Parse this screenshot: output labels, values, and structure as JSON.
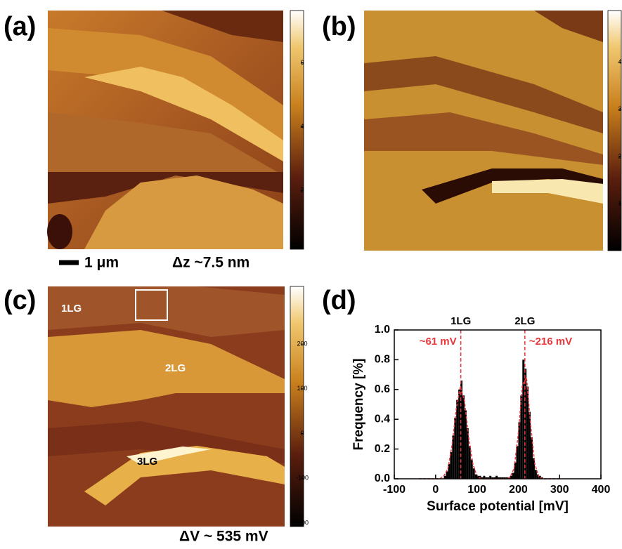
{
  "panels": [
    {
      "label": "(a)",
      "colorbar": {
        "lim": [
          0.15,
          7.65
        ],
        "ticks": [
          2,
          4,
          6
        ]
      }
    },
    {
      "label": "(b)",
      "colorbar": {
        "lim": [
          0,
          5.1
        ],
        "ticks": [
          1,
          2,
          3,
          4
        ]
      }
    },
    {
      "label": "(c)",
      "colorbar": {
        "lim": [
          -208,
          329
        ],
        "ticks": [
          -200,
          -100,
          0,
          100,
          200
        ]
      },
      "annotations": [
        "1LG",
        "2LG",
        "3LG"
      ]
    }
  ],
  "scale_bar": "1 μm",
  "height_range": "Δz ~7.5 nm",
  "potential_range": "ΔV ~ 535 mV",
  "chart_data": {
    "type": "histogram",
    "label": "(d)",
    "xlabel": "Surface potential  [mV]",
    "ylabel": "Frequency   [%]",
    "bins": [
      20,
      25,
      30,
      35,
      40,
      45,
      50,
      55,
      60,
      65,
      70,
      75,
      80,
      85,
      90,
      95,
      100,
      105,
      110,
      115,
      120,
      125,
      130,
      135,
      140,
      145,
      150,
      155,
      160,
      165,
      170,
      175,
      180,
      185,
      190,
      195,
      200,
      205,
      210,
      215,
      220,
      225,
      230,
      235,
      240,
      245,
      250,
      255,
      260
    ],
    "values": [
      0.02,
      0.05,
      0.1,
      0.18,
      0.29,
      0.41,
      0.53,
      0.6,
      0.66,
      0.56,
      0.46,
      0.34,
      0.22,
      0.13,
      0.07,
      0.03,
      0.02,
      0.02,
      0.01,
      0.02,
      0.01,
      0.01,
      0.02,
      0.01,
      0.01,
      0.02,
      0.01,
      0.01,
      0.01,
      0.01,
      0.01,
      0.01,
      0.02,
      0.04,
      0.11,
      0.22,
      0.38,
      0.56,
      0.8,
      0.74,
      0.62,
      0.45,
      0.28,
      0.14,
      0.06,
      0.03,
      0.02,
      0.01
    ],
    "color": "#000000",
    "fit": {
      "color": "#e8383d",
      "x": [
        -40,
        -30,
        -20,
        -10,
        0,
        10,
        20,
        30,
        40,
        50,
        60,
        70,
        80,
        90,
        100,
        110,
        120,
        130,
        140,
        150,
        160,
        170,
        180,
        190,
        200,
        210,
        220,
        230,
        240,
        250,
        260,
        270,
        280,
        290,
        300
      ],
      "values": [
        0,
        0,
        0,
        0,
        0,
        0,
        0.02,
        0.07,
        0.23,
        0.47,
        0.62,
        0.52,
        0.28,
        0.1,
        0.02,
        0,
        0,
        0,
        0,
        0,
        0,
        0,
        0.01,
        0.07,
        0.3,
        0.63,
        0.68,
        0.36,
        0.1,
        0.01,
        0,
        0,
        0,
        0,
        0
      ]
    },
    "peaks": [
      {
        "value": 61,
        "label": "~61 mV",
        "name": "1LG"
      },
      {
        "value": 216,
        "label": "~216 mV",
        "name": "2LG"
      }
    ],
    "xlim": [
      -100,
      400
    ],
    "xticks": [
      -100,
      0,
      100,
      200,
      300,
      400
    ],
    "ylim": [
      0,
      1
    ],
    "yticks": [
      {
        "value": 0,
        "label": "0.0"
      },
      {
        "value": 0.2,
        "label": "0.2"
      },
      {
        "value": 0.4,
        "label": "0.4"
      },
      {
        "value": 0.6,
        "label": "0.6"
      },
      {
        "value": 0.8,
        "label": "0.8"
      },
      {
        "value": 1,
        "label": "1.0"
      }
    ]
  }
}
